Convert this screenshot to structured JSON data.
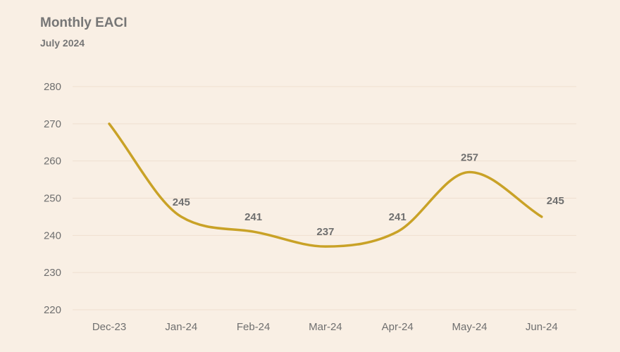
{
  "chart_data": {
    "type": "line",
    "title": "Monthly EACI",
    "subtitle": "July 2024",
    "xlabel": "",
    "ylabel": "",
    "categories": [
      "Dec-23",
      "Jan-24",
      "Feb-24",
      "Mar-24",
      "Apr-24",
      "May-24",
      "Jun-24"
    ],
    "series": [
      {
        "values": [
          270,
          245,
          241,
          237,
          241,
          257,
          245
        ],
        "data_labels": [
          null,
          "245",
          "241",
          "237",
          "241",
          "257",
          "245"
        ],
        "color": "#c9a227"
      }
    ],
    "ylim": [
      220,
      280
    ],
    "yticks": [
      220,
      230,
      240,
      250,
      260,
      270,
      280
    ],
    "grid": true,
    "smooth": true,
    "legend": "none"
  },
  "colors": {
    "background": "#f9efe4",
    "line": "#c9a227",
    "grid": "#eedfd0"
  }
}
